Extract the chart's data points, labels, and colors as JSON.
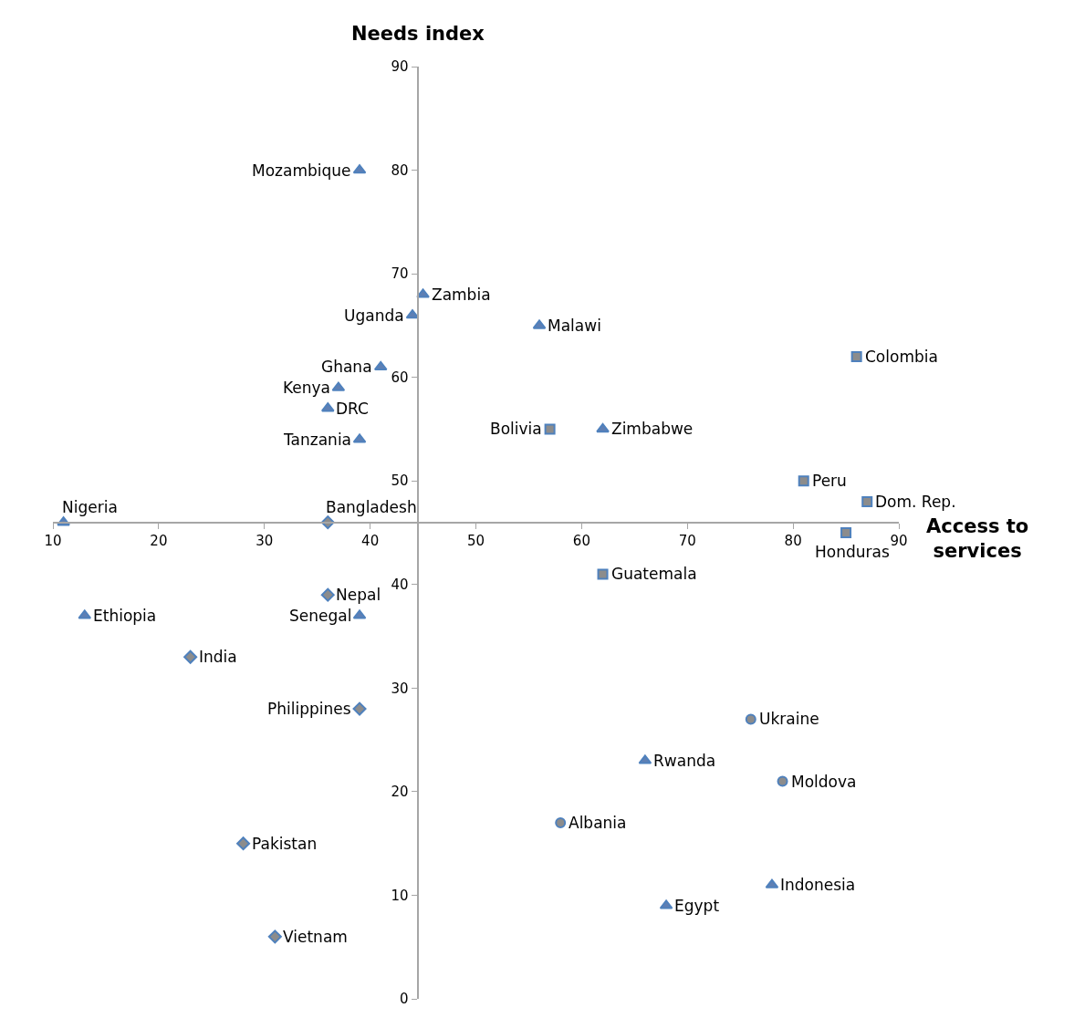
{
  "chart_data": {
    "type": "scatter",
    "xlabel": "Access to services",
    "ylabel": "Needs index",
    "xlim": [
      10,
      90
    ],
    "ylim": [
      0,
      90
    ],
    "xticks": [
      10,
      20,
      30,
      40,
      50,
      60,
      70,
      80,
      90
    ],
    "yticks": [
      0,
      10,
      20,
      30,
      40,
      50,
      60,
      70,
      80,
      90
    ],
    "series": [
      {
        "marker": "triangle",
        "color": "#5f7fb3",
        "x": [
          39,
          45,
          44,
          56,
          41,
          37,
          36,
          39,
          62,
          11,
          13,
          39,
          66,
          78,
          68
        ],
        "values": [
          80,
          68,
          66,
          65,
          61,
          59,
          57,
          54,
          55,
          46,
          37,
          37,
          23,
          11,
          9
        ]
      },
      {
        "marker": "square",
        "color": "#8c8c8c",
        "x": [
          86,
          57,
          81,
          87,
          85,
          62
        ],
        "values": [
          62,
          55,
          50,
          48,
          45,
          41
        ]
      },
      {
        "marker": "circle",
        "color": "#8c8c8c",
        "x": [
          76,
          79,
          58
        ],
        "values": [
          27,
          21,
          17
        ]
      },
      {
        "marker": "diamond",
        "color": "#8c8c8c",
        "x": [
          36,
          36,
          23,
          39,
          28,
          31
        ],
        "values": [
          46,
          39,
          33,
          28,
          15,
          6
        ]
      }
    ],
    "annotations": [
      {
        "text": "Mozambique",
        "x": 39,
        "y": 80
      },
      {
        "text": "Zambia",
        "x": 45,
        "y": 68
      },
      {
        "text": "Uganda",
        "x": 44,
        "y": 66
      },
      {
        "text": "Malawi",
        "x": 56,
        "y": 65
      },
      {
        "text": "Ghana",
        "x": 41,
        "y": 61
      },
      {
        "text": "Kenya",
        "x": 37,
        "y": 59
      },
      {
        "text": "DRC",
        "x": 36,
        "y": 57
      },
      {
        "text": "Tanzania",
        "x": 39,
        "y": 54
      },
      {
        "text": "Zimbabwe",
        "x": 62,
        "y": 55
      },
      {
        "text": "Nigeria",
        "x": 11,
        "y": 46
      },
      {
        "text": "Ethiopia",
        "x": 13,
        "y": 37
      },
      {
        "text": "Senegal",
        "x": 39,
        "y": 37
      },
      {
        "text": "Rwanda",
        "x": 66,
        "y": 23
      },
      {
        "text": "Indonesia",
        "x": 78,
        "y": 11
      },
      {
        "text": "Egypt",
        "x": 68,
        "y": 9
      },
      {
        "text": "Colombia",
        "x": 86,
        "y": 62
      },
      {
        "text": "Bolivia",
        "x": 57,
        "y": 55
      },
      {
        "text": "Peru",
        "x": 81,
        "y": 50
      },
      {
        "text": "Dom. Rep.",
        "x": 87,
        "y": 48
      },
      {
        "text": "Honduras",
        "x": 85,
        "y": 45
      },
      {
        "text": "Guatemala",
        "x": 62,
        "y": 41
      },
      {
        "text": "Ukraine",
        "x": 76,
        "y": 27
      },
      {
        "text": "Moldova",
        "x": 79,
        "y": 21
      },
      {
        "text": "Albania",
        "x": 58,
        "y": 17
      },
      {
        "text": "Bangladesh",
        "x": 36,
        "y": 46
      },
      {
        "text": "Nepal",
        "x": 36,
        "y": 39
      },
      {
        "text": "India",
        "x": 23,
        "y": 33
      },
      {
        "text": "Philippines",
        "x": 39,
        "y": 28
      },
      {
        "text": "Pakistan",
        "x": 28,
        "y": 15
      },
      {
        "text": "Vietnam",
        "x": 31,
        "y": 6
      }
    ]
  }
}
